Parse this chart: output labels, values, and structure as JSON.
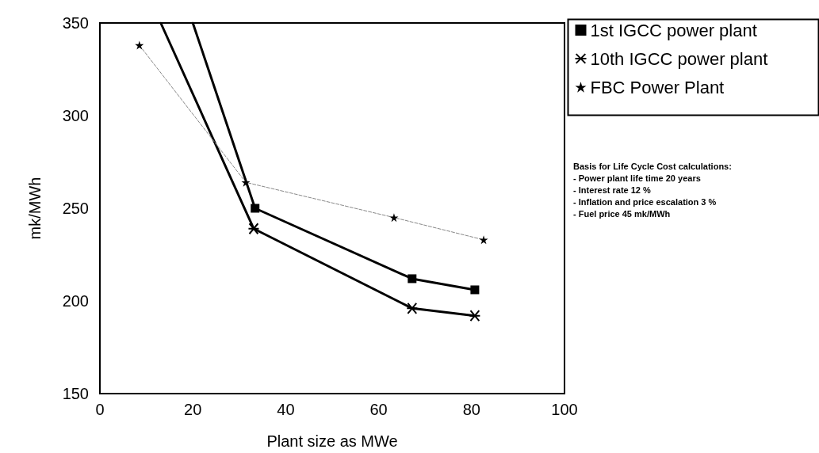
{
  "chart_data": {
    "type": "line",
    "xlabel": "Plant size as MWe",
    "ylabel": "mk/MWh",
    "xlim": [
      0,
      100
    ],
    "xticks": [
      0,
      20,
      40,
      60,
      80,
      100
    ],
    "ylim": [
      150,
      350
    ],
    "yticks": [
      150,
      200,
      250,
      300,
      350
    ],
    "grid": false,
    "legend": "top right",
    "series": [
      {
        "name": "1st IGCC power plant",
        "color": "#000000",
        "marker": "square",
        "line_style": "solid",
        "x": [
          20,
          33.4,
          67.2,
          80.7
        ],
        "values": [
          350,
          250,
          212,
          206
        ]
      },
      {
        "name": "10th IGCC power plant",
        "color": "#000000",
        "marker": "cross",
        "line_style": "solid",
        "x": [
          13.1,
          33.1,
          67.2,
          80.7
        ],
        "values": [
          350,
          239,
          196,
          192
        ]
      },
      {
        "name": "FBC Power Plant",
        "color": "#000000",
        "marker": "star",
        "line_style": "dashed",
        "x": [
          8.5,
          31.4,
          63.3,
          82.6
        ],
        "values": [
          338,
          264,
          245,
          233
        ]
      }
    ],
    "annotations": [
      "Basis for Life Cycle Cost calculations:\n- Power plant life time 20 years\n- Interest rate 12 %\n- Inflation and price escalation 3 %\n- Fuel price 45 mk/MWh"
    ]
  }
}
